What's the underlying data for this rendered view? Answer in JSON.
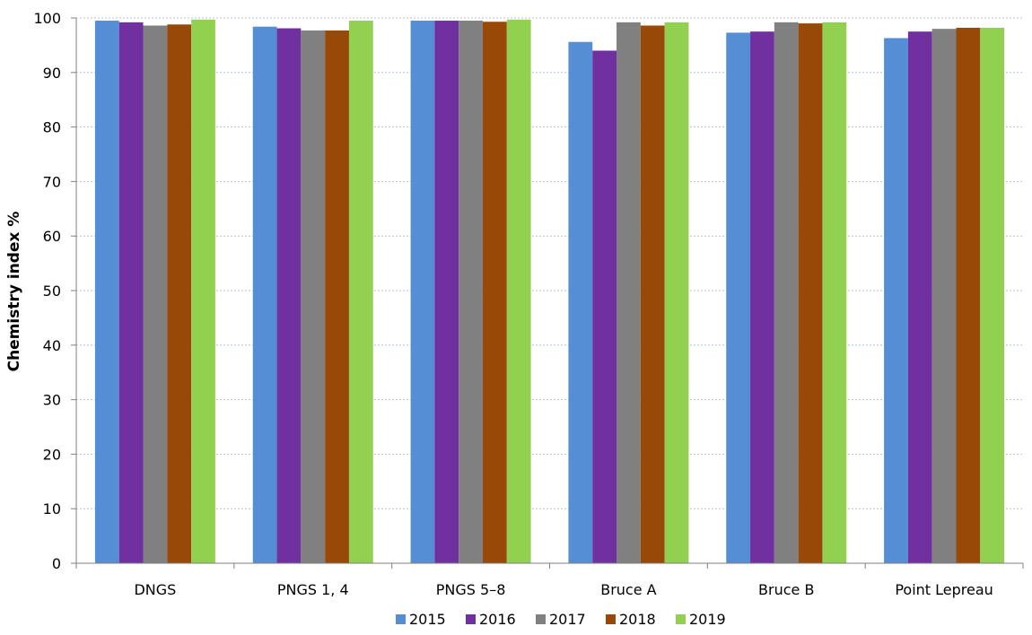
{
  "chart_data": {
    "type": "bar",
    "title": "",
    "xlabel": "",
    "ylabel": "Chemistry index   %",
    "ylim": [
      0,
      100
    ],
    "yticks": [
      "0",
      "10",
      "20",
      "30",
      "40",
      "50",
      "60",
      "70",
      "80",
      "90",
      "100"
    ],
    "grid": true,
    "legend_position": "bottom",
    "categories": [
      "DNGS",
      "PNGS 1, 4",
      "PNGS 5–8",
      "Bruce A",
      "Bruce B",
      "Point Lepreau"
    ],
    "series": [
      {
        "name": "2015",
        "color": "#558ed5",
        "values": [
          99.5,
          98.4,
          99.5,
          95.6,
          97.3,
          96.3
        ]
      },
      {
        "name": "2016",
        "color": "#7030a0",
        "values": [
          99.2,
          98.1,
          99.5,
          94.0,
          97.5,
          97.5
        ]
      },
      {
        "name": "2017",
        "color": "#808080",
        "values": [
          98.6,
          97.7,
          99.5,
          99.2,
          99.2,
          98.0
        ]
      },
      {
        "name": "2018",
        "color": "#984807",
        "values": [
          98.8,
          97.7,
          99.3,
          98.6,
          99.0,
          98.2
        ]
      },
      {
        "name": "2019",
        "color": "#92d050",
        "values": [
          99.7,
          99.5,
          99.7,
          99.2,
          99.2,
          98.2
        ]
      }
    ]
  }
}
